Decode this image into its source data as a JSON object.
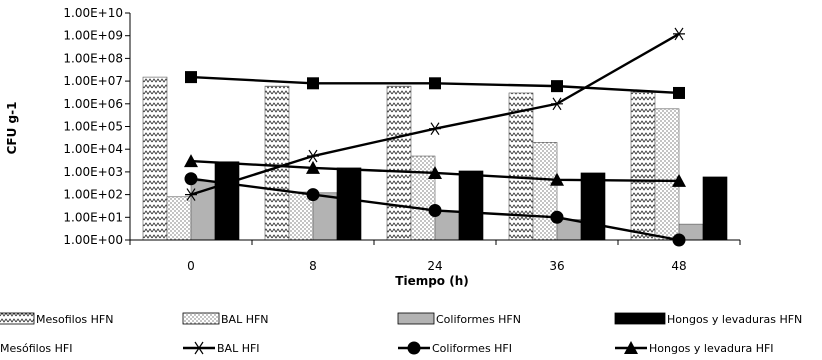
{
  "chart_data": {
    "type": "bar",
    "title": "",
    "xlabel": "Tiempo (h)",
    "ylabel": "CFU g-1",
    "y_scale": "log",
    "ylim": [
      1,
      10000000000
    ],
    "y_ticks": [
      "1.00E+00",
      "1.00E+01",
      "1.00E+02",
      "1.00E+03",
      "1.00E+04",
      "1.00E+05",
      "1.00E+06",
      "1.00E+07",
      "1.00E+08",
      "1.00E+09",
      "1.00E+10"
    ],
    "categories": [
      "0",
      "8",
      "24",
      "36",
      "48"
    ],
    "bar_series": [
      {
        "name": "Mesofilos HFN",
        "pattern": "zigzag",
        "values": [
          15000000,
          6000000,
          6000000,
          3000000,
          3500000
        ]
      },
      {
        "name": "BAL HFN",
        "pattern": "dots",
        "values": [
          80,
          130,
          5000,
          20000,
          600000
        ]
      },
      {
        "name": "Coliformes HFN",
        "pattern": "gray",
        "values": [
          400,
          120,
          18,
          8,
          5
        ]
      },
      {
        "name": "Hongos y levaduras HFN",
        "pattern": "black",
        "values": [
          2800,
          1500,
          1100,
          900,
          600
        ]
      }
    ],
    "line_series": [
      {
        "name": "Mesófilos HFI",
        "marker": "square",
        "values": [
          15000000,
          8000000,
          8000000,
          6000000,
          3000000
        ]
      },
      {
        "name": "BAL HFI",
        "marker": "star",
        "values": [
          100,
          5000,
          80000,
          1000000,
          1200000000
        ]
      },
      {
        "name": "Coliformes HFI",
        "marker": "circle",
        "values": [
          500,
          100,
          20,
          10,
          1
        ]
      },
      {
        "name": "Hongos y levadura HFI",
        "marker": "triangle",
        "values": [
          3000,
          1500,
          900,
          450,
          400
        ]
      }
    ],
    "grid": false,
    "legend_position": "bottom"
  }
}
